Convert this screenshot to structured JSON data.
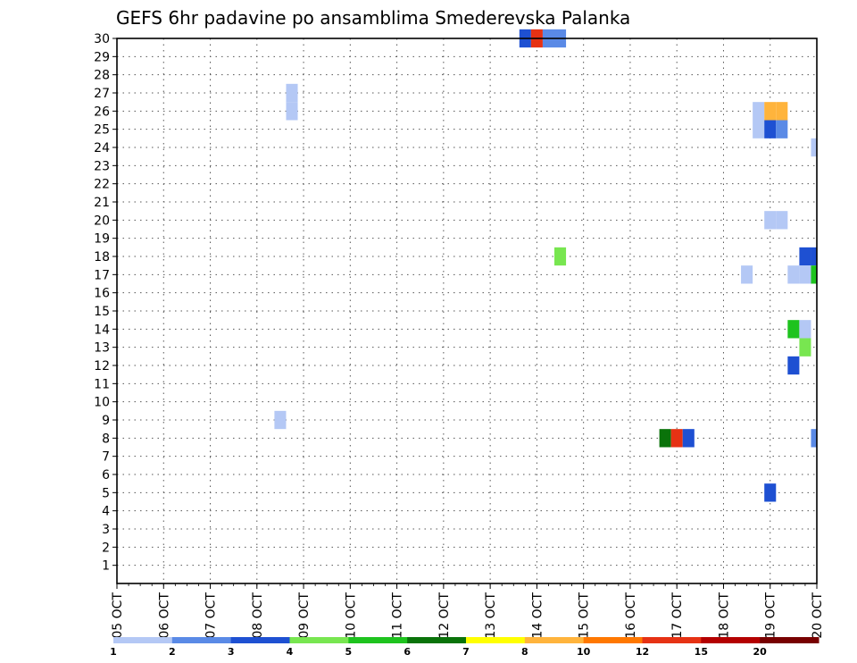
{
  "chart_data": {
    "type": "heatmap",
    "title": "GEFS 6hr padavine po ansamblima Smederevska Palanka",
    "xlabel": "",
    "ylabel": "",
    "x_range": [
      "2023-10-05T00",
      "2023-10-20T00"
    ],
    "x_tick_labels": [
      "05 OCT",
      "06 OCT",
      "07 OCT",
      "08 OCT",
      "09 OCT",
      "10 OCT",
      "11 OCT",
      "12 OCT",
      "13 OCT",
      "14 OCT",
      "15 OCT",
      "16 OCT",
      "17 OCT",
      "18 OCT",
      "19 OCT",
      "20 OCT"
    ],
    "y_range": [
      0,
      30
    ],
    "y_tick_labels": [
      "1",
      "2",
      "3",
      "4",
      "5",
      "6",
      "7",
      "8",
      "9",
      "10",
      "11",
      "12",
      "13",
      "14",
      "15",
      "16",
      "17",
      "18",
      "19",
      "20",
      "21",
      "22",
      "23",
      "24",
      "25",
      "26",
      "27",
      "28",
      "29",
      "30"
    ],
    "grid": true,
    "time_step_hours": 6,
    "legend": {
      "placement": "bottom",
      "labels": [
        "1",
        "2",
        "3",
        "4",
        "5",
        "6",
        "7",
        "8",
        "10",
        "12",
        "15",
        "20"
      ],
      "colors": [
        "#b4c8f5",
        "#5a8ae6",
        "#1e50d2",
        "#78e650",
        "#1ec31e",
        "#0a730a",
        "#ffff00",
        "#ffb43c",
        "#ff7800",
        "#e63214",
        "#b40000",
        "#780000"
      ]
    },
    "cells": [
      {
        "member": 30,
        "time": "2023-10-13T18",
        "color": "#1e50d2"
      },
      {
        "member": 30,
        "time": "2023-10-14T00",
        "color": "#e63214"
      },
      {
        "member": 30,
        "time": "2023-10-14T06",
        "color": "#5a8ae6"
      },
      {
        "member": 30,
        "time": "2023-10-14T12",
        "color": "#5a8ae6"
      },
      {
        "member": 27,
        "time": "2023-10-08T18",
        "color": "#b4c8f5"
      },
      {
        "member": 26,
        "time": "2023-10-08T18",
        "color": "#b4c8f5"
      },
      {
        "member": 26,
        "time": "2023-10-18T18",
        "color": "#b4c8f5"
      },
      {
        "member": 26,
        "time": "2023-10-19T00",
        "color": "#ffb43c"
      },
      {
        "member": 26,
        "time": "2023-10-19T06",
        "color": "#ffb43c"
      },
      {
        "member": 25,
        "time": "2023-10-18T18",
        "color": "#b4c8f5"
      },
      {
        "member": 25,
        "time": "2023-10-19T00",
        "color": "#1e50d2"
      },
      {
        "member": 25,
        "time": "2023-10-19T06",
        "color": "#5a8ae6"
      },
      {
        "member": 24,
        "time": "2023-10-20T00",
        "color": "#b4c8f5"
      },
      {
        "member": 20,
        "time": "2023-10-19T00",
        "color": "#b4c8f5"
      },
      {
        "member": 20,
        "time": "2023-10-19T06",
        "color": "#b4c8f5"
      },
      {
        "member": 18,
        "time": "2023-10-14T12",
        "color": "#78e650"
      },
      {
        "member": 18,
        "time": "2023-10-19T18",
        "color": "#1e50d2"
      },
      {
        "member": 18,
        "time": "2023-10-20T00",
        "color": "#1e50d2"
      },
      {
        "member": 17,
        "time": "2023-10-18T12",
        "color": "#b4c8f5"
      },
      {
        "member": 17,
        "time": "2023-10-19T12",
        "color": "#b4c8f5"
      },
      {
        "member": 17,
        "time": "2023-10-19T18",
        "color": "#b4c8f5"
      },
      {
        "member": 17,
        "time": "2023-10-20T00",
        "color": "#1ec31e"
      },
      {
        "member": 14,
        "time": "2023-10-19T12",
        "color": "#1ec31e"
      },
      {
        "member": 14,
        "time": "2023-10-19T18",
        "color": "#b4c8f5"
      },
      {
        "member": 13,
        "time": "2023-10-19T18",
        "color": "#78e650"
      },
      {
        "member": 12,
        "time": "2023-10-19T12",
        "color": "#1e50d2"
      },
      {
        "member": 9,
        "time": "2023-10-08T12",
        "color": "#b4c8f5"
      },
      {
        "member": 8,
        "time": "2023-10-16T18",
        "color": "#0a730a"
      },
      {
        "member": 8,
        "time": "2023-10-17T00",
        "color": "#e63214"
      },
      {
        "member": 8,
        "time": "2023-10-17T06",
        "color": "#1e50d2"
      },
      {
        "member": 8,
        "time": "2023-10-20T00",
        "color": "#5a8ae6"
      },
      {
        "member": 5,
        "time": "2023-10-19T00",
        "color": "#1e50d2"
      }
    ]
  }
}
